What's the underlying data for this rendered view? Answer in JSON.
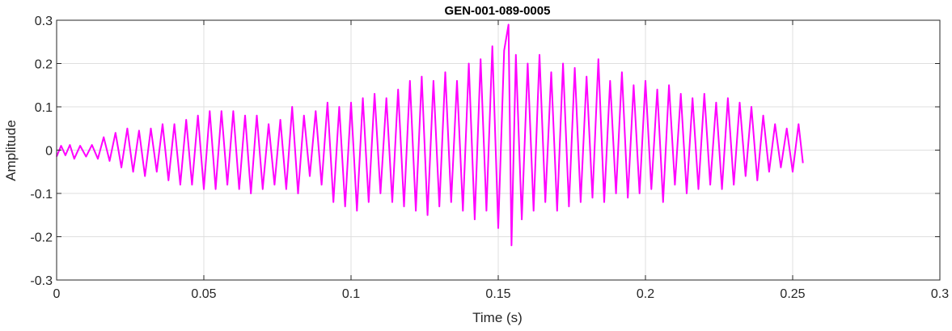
{
  "chart_data": {
    "type": "line",
    "title": "GEN-001-089-0005",
    "xlabel": "Time (s)",
    "ylabel": "Amplitude",
    "xlim": [
      0,
      0.3
    ],
    "ylim": [
      -0.3,
      0.3
    ],
    "xticks": [
      0,
      0.05,
      0.1,
      0.15,
      0.2,
      0.25,
      0.3
    ],
    "xtick_labels": [
      "0",
      "0.05",
      "0.1",
      "0.15",
      "0.2",
      "0.25",
      "0.3"
    ],
    "yticks": [
      -0.3,
      -0.2,
      -0.1,
      0,
      0.1,
      0.2,
      0.3
    ],
    "ytick_labels": [
      "-0.3",
      "-0.2",
      "-0.1",
      "0",
      "0.1",
      "0.2",
      "0.3"
    ],
    "grid": true,
    "series": [
      {
        "color": "#ff00ff",
        "x": [
          0.0,
          0.0015,
          0.003,
          0.0045,
          0.006,
          0.008,
          0.01,
          0.012,
          0.014,
          0.016,
          0.018,
          0.02,
          0.022,
          0.024,
          0.026,
          0.028,
          0.03,
          0.032,
          0.034,
          0.036,
          0.038,
          0.04,
          0.042,
          0.044,
          0.046,
          0.048,
          0.05,
          0.052,
          0.054,
          0.056,
          0.058,
          0.06,
          0.062,
          0.064,
          0.066,
          0.068,
          0.07,
          0.072,
          0.074,
          0.076,
          0.078,
          0.08,
          0.082,
          0.084,
          0.086,
          0.088,
          0.09,
          0.092,
          0.094,
          0.096,
          0.098,
          0.1,
          0.102,
          0.104,
          0.106,
          0.108,
          0.11,
          0.112,
          0.114,
          0.116,
          0.118,
          0.12,
          0.122,
          0.124,
          0.126,
          0.128,
          0.13,
          0.132,
          0.134,
          0.136,
          0.138,
          0.14,
          0.142,
          0.144,
          0.146,
          0.148,
          0.15,
          0.152,
          0.1535,
          0.1545,
          0.156,
          0.158,
          0.16,
          0.162,
          0.164,
          0.166,
          0.168,
          0.17,
          0.172,
          0.174,
          0.176,
          0.178,
          0.18,
          0.182,
          0.184,
          0.186,
          0.188,
          0.19,
          0.192,
          0.194,
          0.196,
          0.198,
          0.2,
          0.202,
          0.204,
          0.206,
          0.208,
          0.21,
          0.212,
          0.214,
          0.216,
          0.218,
          0.22,
          0.222,
          0.224,
          0.226,
          0.228,
          0.23,
          0.232,
          0.234,
          0.236,
          0.238,
          0.24,
          0.242,
          0.244,
          0.246,
          0.248,
          0.25,
          0.252,
          0.2535
        ],
        "y": [
          -0.015,
          0.01,
          -0.012,
          0.012,
          -0.02,
          0.01,
          -0.015,
          0.012,
          -0.02,
          0.03,
          -0.025,
          0.04,
          -0.04,
          0.05,
          -0.05,
          0.045,
          -0.06,
          0.05,
          -0.05,
          0.06,
          -0.07,
          0.06,
          -0.08,
          0.07,
          -0.08,
          0.08,
          -0.09,
          0.09,
          -0.09,
          0.09,
          -0.08,
          0.09,
          -0.09,
          0.08,
          -0.1,
          0.08,
          -0.09,
          0.06,
          -0.08,
          0.07,
          -0.09,
          0.1,
          -0.1,
          0.08,
          -0.06,
          0.09,
          -0.08,
          0.11,
          -0.12,
          0.1,
          -0.13,
          0.11,
          -0.14,
          0.12,
          -0.12,
          0.13,
          -0.1,
          0.12,
          -0.12,
          0.14,
          -0.13,
          0.16,
          -0.14,
          0.17,
          -0.15,
          0.16,
          -0.13,
          0.18,
          -0.12,
          0.16,
          -0.14,
          0.2,
          -0.16,
          0.21,
          -0.14,
          0.24,
          -0.18,
          0.23,
          0.29,
          -0.22,
          0.22,
          -0.16,
          0.2,
          -0.14,
          0.22,
          -0.12,
          0.18,
          -0.14,
          0.2,
          -0.13,
          0.19,
          -0.12,
          0.17,
          -0.11,
          0.21,
          -0.12,
          0.16,
          -0.1,
          0.18,
          -0.11,
          0.15,
          -0.1,
          0.16,
          -0.09,
          0.14,
          -0.12,
          0.15,
          -0.08,
          0.13,
          -0.1,
          0.12,
          -0.09,
          0.13,
          -0.08,
          0.11,
          -0.09,
          0.12,
          -0.08,
          0.11,
          -0.06,
          0.1,
          -0.07,
          0.08,
          -0.05,
          0.06,
          -0.04,
          0.05,
          -0.05,
          0.06,
          -0.03
        ]
      }
    ]
  }
}
